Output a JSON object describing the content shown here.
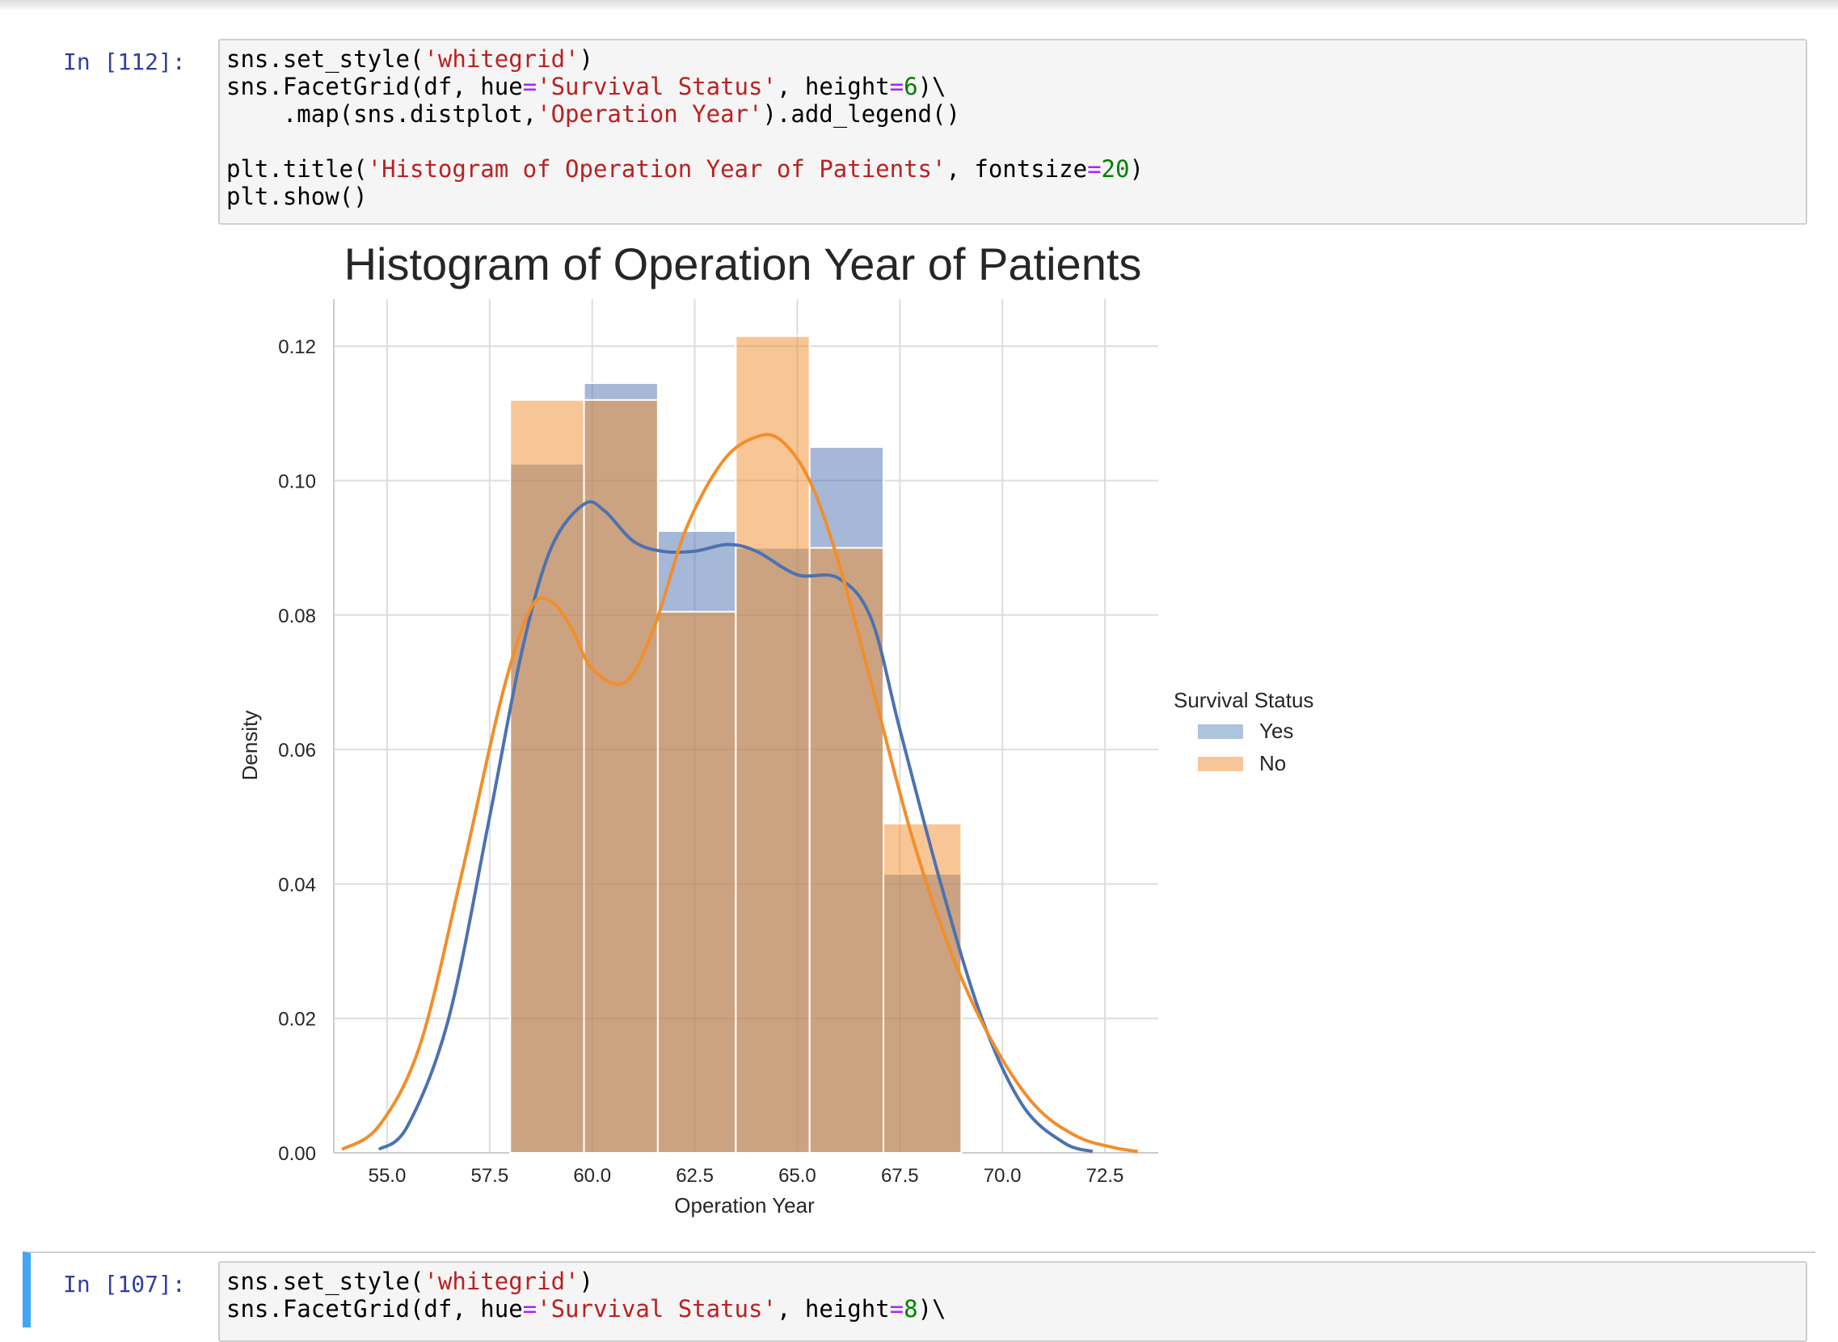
{
  "cells": [
    {
      "prompt": "In [112]:",
      "lines": [
        [
          {
            "t": "sns.set_style(",
            "c": ""
          },
          {
            "t": "'whitegrid'",
            "c": "str"
          },
          {
            "t": ")",
            "c": ""
          }
        ],
        [
          {
            "t": "sns.FacetGrid(df, hue",
            "c": ""
          },
          {
            "t": "=",
            "c": "op"
          },
          {
            "t": "'Survival Status'",
            "c": "str"
          },
          {
            "t": ", height",
            "c": ""
          },
          {
            "t": "=",
            "c": "op"
          },
          {
            "t": "6",
            "c": "num"
          },
          {
            "t": ")\\",
            "c": ""
          }
        ],
        [
          {
            "t": "    .map(sns.distplot,",
            "c": ""
          },
          {
            "t": "'Operation Year'",
            "c": "str"
          },
          {
            "t": ").add_legend()",
            "c": ""
          }
        ],
        [],
        [
          {
            "t": "plt.title(",
            "c": ""
          },
          {
            "t": "'Histogram of Operation Year of Patients'",
            "c": "str"
          },
          {
            "t": ", fontsize",
            "c": ""
          },
          {
            "t": "=",
            "c": "op"
          },
          {
            "t": "20",
            "c": "num"
          },
          {
            "t": ")",
            "c": ""
          }
        ],
        [
          {
            "t": "plt.show()",
            "c": ""
          }
        ]
      ]
    },
    {
      "prompt": "In [107]:",
      "lines": [
        [
          {
            "t": "sns.set_style(",
            "c": ""
          },
          {
            "t": "'whitegrid'",
            "c": "str"
          },
          {
            "t": ")",
            "c": ""
          }
        ],
        [
          {
            "t": "sns.FacetGrid(df, hue",
            "c": ""
          },
          {
            "t": "=",
            "c": "op"
          },
          {
            "t": "'Survival Status'",
            "c": "str"
          },
          {
            "t": ", height",
            "c": ""
          },
          {
            "t": "=",
            "c": "op"
          },
          {
            "t": "8",
            "c": "num"
          },
          {
            "t": ")\\",
            "c": ""
          }
        ]
      ]
    }
  ],
  "colors": {
    "yes": "#4c72b0",
    "no": "#f28e2b",
    "yes_fill": "#aec3dd",
    "no_fill": "#f7c59a",
    "overlap": "#c4ae92",
    "grid": "#dddddd",
    "text": "#262626"
  },
  "chart_data": {
    "type": "bar",
    "title": "Histogram of Operation Year of Patients",
    "xlabel": "Operation Year",
    "ylabel": "Density",
    "xlim": [
      53.7,
      73.8
    ],
    "ylim": [
      0,
      0.127
    ],
    "xticks": [
      "55.0",
      "57.5",
      "60.0",
      "62.5",
      "65.0",
      "67.5",
      "70.0",
      "72.5"
    ],
    "yticks": [
      "0.00",
      "0.02",
      "0.04",
      "0.06",
      "0.08",
      "0.10",
      "0.12"
    ],
    "grid": true,
    "legend": {
      "title": "Survival Status",
      "placement": "right"
    },
    "series": [
      {
        "name": "Yes",
        "color": "#4c72b0",
        "bins": [
          [
            58.0,
            59.8,
            0.1025
          ],
          [
            59.8,
            61.6,
            0.1145
          ],
          [
            61.6,
            63.5,
            0.0925
          ],
          [
            63.5,
            65.3,
            0.09
          ],
          [
            65.3,
            67.1,
            0.105
          ],
          [
            67.1,
            69.0,
            0.0415
          ]
        ],
        "kde_x": [
          54.8,
          55.5,
          56.5,
          57.5,
          58.3,
          59.0,
          59.8,
          60.3,
          61.0,
          61.7,
          62.5,
          63.3,
          64.0,
          65.0,
          66.0,
          66.8,
          67.5,
          68.5,
          69.5,
          70.5,
          71.5,
          72.2
        ],
        "kde_y": [
          0.0005,
          0.004,
          0.02,
          0.05,
          0.075,
          0.09,
          0.0965,
          0.0955,
          0.091,
          0.0895,
          0.0895,
          0.0905,
          0.0895,
          0.086,
          0.0855,
          0.0795,
          0.063,
          0.04,
          0.02,
          0.007,
          0.0015,
          0.0002
        ]
      },
      {
        "name": "No",
        "color": "#f28e2b",
        "bins": [
          [
            58.0,
            59.8,
            0.112
          ],
          [
            59.8,
            61.6,
            0.112
          ],
          [
            61.6,
            63.5,
            0.0805
          ],
          [
            63.5,
            65.3,
            0.1215
          ],
          [
            65.3,
            67.1,
            0.09
          ],
          [
            67.1,
            69.0,
            0.049
          ]
        ],
        "kde_x": [
          53.9,
          54.8,
          55.8,
          56.8,
          57.8,
          58.5,
          59.0,
          59.5,
          60.0,
          60.8,
          61.5,
          62.3,
          63.2,
          64.0,
          64.6,
          65.3,
          66.0,
          66.8,
          67.8,
          68.8,
          69.8,
          70.8,
          71.8,
          72.7,
          73.3
        ],
        "kde_y": [
          0.0005,
          0.004,
          0.016,
          0.041,
          0.068,
          0.081,
          0.082,
          0.078,
          0.072,
          0.07,
          0.078,
          0.093,
          0.103,
          0.1065,
          0.106,
          0.1,
          0.088,
          0.07,
          0.047,
          0.029,
          0.016,
          0.007,
          0.0025,
          0.0008,
          0.0002
        ]
      }
    ]
  }
}
